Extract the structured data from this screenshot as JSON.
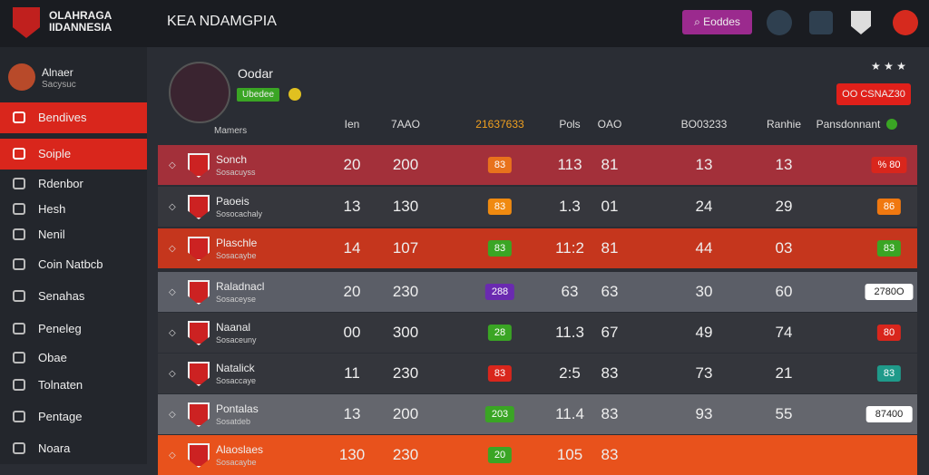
{
  "header": {
    "brand_line1": "OLAHRAGA",
    "brand_line2": "IIDANNESIA",
    "title": "KEA NDAMGPIA",
    "search": "Eoddes"
  },
  "sidebar": {
    "user_name": "Alnaer",
    "user_sub": "Sacysuc",
    "items": [
      "Bendives",
      "Soiple",
      "Rdenbor",
      "Hesh",
      "Nenil",
      "Coin Natbcb",
      "Senahas",
      "Peneleg",
      "Obae",
      "Tolnaten",
      "Pentage",
      "Noara"
    ]
  },
  "profile": {
    "name": "Oodar",
    "badge": "Ubedee",
    "label": "Mamers",
    "button": "OO CSNAZ30"
  },
  "table": {
    "columns": [
      "Ien",
      "7AAO",
      "21637633",
      "Pols",
      "OAO",
      "BO03233",
      "Ranhie",
      "Pansdonnant"
    ],
    "rows": [
      {
        "name": "Sonch",
        "sub": "Sosacuyss",
        "cells": [
          "20",
          "200",
          "83",
          "113",
          "81",
          "13",
          "13",
          "% 80"
        ]
      },
      {
        "name": "Paoeis",
        "sub": "Sosocachaly",
        "cells": [
          "13",
          "130",
          "83",
          "1.3",
          "01",
          "24",
          "29",
          "86"
        ]
      },
      {
        "name": "Plaschle",
        "sub": "Sosacaybe",
        "cells": [
          "14",
          "107",
          "83",
          "11:2",
          "81",
          "44",
          "03",
          "83"
        ]
      },
      {
        "name": "Raladnacl",
        "sub": "Sosaceyse",
        "cells": [
          "20",
          "230",
          "288",
          "63",
          "63",
          "30",
          "60",
          "2780O"
        ]
      },
      {
        "name": "Naanal",
        "sub": "Sosaceuny",
        "cells": [
          "00",
          "300",
          "28",
          "11.3",
          "67",
          "49",
          "74",
          "80"
        ]
      },
      {
        "name": "Natalick",
        "sub": "Sosaccaye",
        "cells": [
          "11",
          "230",
          "83",
          "2:5",
          "83",
          "73",
          "21",
          "83"
        ]
      },
      {
        "name": "Pontalas",
        "sub": "Sosatdeb",
        "cells": [
          "13",
          "200",
          "203",
          "11.4",
          "83",
          "93",
          "55",
          "87400"
        ]
      },
      {
        "name": "Alaoslaes",
        "sub": "Sosacaybe",
        "cells": [
          "130",
          "230",
          "20",
          "105",
          "83",
          "",
          "",
          ""
        ]
      }
    ]
  }
}
